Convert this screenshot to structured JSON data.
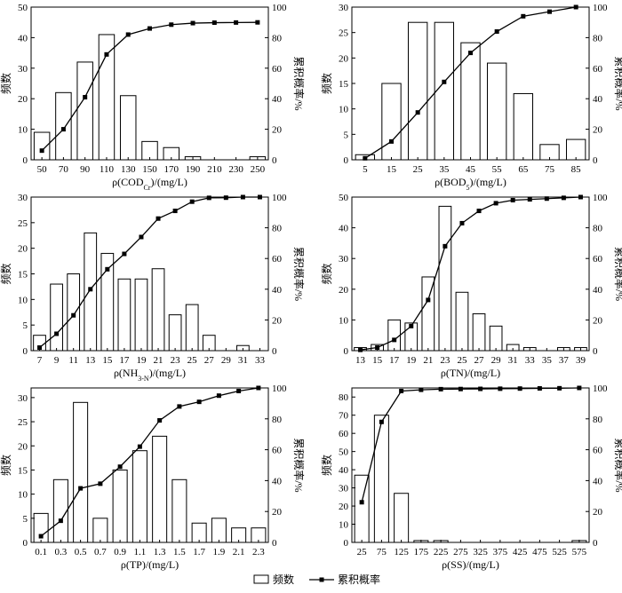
{
  "legend": {
    "bar_label": "频数",
    "line_label": "累积概率"
  },
  "chart_data": [
    {
      "type": "bar",
      "xlabel": "ρ(COD_Cr)/(mg/L)",
      "ylabel_left": "频数",
      "ylabel_right": "累积概率/%",
      "categories": [
        50,
        70,
        90,
        110,
        130,
        150,
        170,
        190,
        210,
        230,
        250
      ],
      "ylim": [
        0,
        50
      ],
      "yticks": [
        0,
        10,
        20,
        30,
        40,
        50
      ],
      "y2lim": [
        0,
        100
      ],
      "y2ticks": [
        0,
        20,
        40,
        60,
        80,
        100
      ],
      "series": [
        {
          "values": [
            9,
            22,
            32,
            41,
            21,
            6,
            4,
            1,
            0,
            0,
            1
          ]
        },
        {
          "values": [
            6,
            20,
            41,
            69,
            82,
            86,
            88.5,
            89.5,
            89.8,
            89.9,
            90
          ]
        }
      ]
    },
    {
      "type": "bar",
      "xlabel": "ρ(BOD_5)/(mg/L)",
      "ylabel_left": "频数",
      "ylabel_right": "累积概率/%",
      "categories": [
        5,
        15,
        25,
        35,
        45,
        55,
        65,
        75,
        85
      ],
      "ylim": [
        0,
        30
      ],
      "yticks": [
        0,
        5,
        10,
        15,
        20,
        25,
        30
      ],
      "y2lim": [
        0,
        100
      ],
      "y2ticks": [
        0,
        20,
        40,
        60,
        80,
        100
      ],
      "series": [
        {
          "values": [
            1,
            15,
            27,
            27,
            23,
            19,
            13,
            3,
            4
          ]
        },
        {
          "values": [
            1,
            12,
            31,
            51,
            70,
            84,
            94,
            97,
            100
          ]
        }
      ]
    },
    {
      "type": "bar",
      "xlabel": "ρ(NH_3-N)/(mg/L)",
      "ylabel_left": "频数",
      "ylabel_right": "累积概率/%",
      "categories": [
        7,
        9,
        11,
        13,
        15,
        17,
        19,
        21,
        23,
        25,
        27,
        29,
        31,
        33
      ],
      "ylim": [
        0,
        30
      ],
      "yticks": [
        0,
        5,
        10,
        15,
        20,
        25,
        30
      ],
      "y2lim": [
        0,
        100
      ],
      "y2ticks": [
        0,
        20,
        40,
        60,
        80,
        100
      ],
      "series": [
        {
          "values": [
            3,
            13,
            15,
            23,
            19,
            14,
            14,
            16,
            7,
            9,
            3,
            0,
            1,
            0
          ]
        },
        {
          "values": [
            2,
            11,
            23,
            40,
            53,
            63,
            74,
            86,
            91,
            97,
            99.5,
            99.6,
            100,
            100
          ]
        }
      ]
    },
    {
      "type": "bar",
      "xlabel": "ρ(TN)/(mg/L)",
      "ylabel_left": "频数",
      "ylabel_right": "累积概率/%",
      "categories": [
        13,
        15,
        17,
        19,
        21,
        23,
        25,
        27,
        29,
        31,
        33,
        35,
        37,
        39
      ],
      "ylim": [
        0,
        50
      ],
      "yticks": [
        0,
        10,
        20,
        30,
        40,
        50
      ],
      "y2lim": [
        0,
        100
      ],
      "y2ticks": [
        0,
        20,
        40,
        60,
        80,
        100
      ],
      "series": [
        {
          "values": [
            1,
            2,
            10,
            9,
            24,
            47,
            19,
            12,
            8,
            2,
            1,
            0,
            1,
            1
          ]
        },
        {
          "values": [
            0.5,
            2,
            7,
            16,
            33,
            68,
            83,
            91,
            96,
            98,
            98.5,
            99,
            99.5,
            100
          ]
        }
      ]
    },
    {
      "type": "bar",
      "xlabel": "ρ(TP)/(mg/L)",
      "ylabel_left": "频数",
      "ylabel_right": "累积概率/%",
      "categories": [
        0.1,
        0.3,
        0.5,
        0.7,
        0.9,
        1.1,
        1.3,
        1.5,
        1.7,
        1.9,
        2.1,
        2.3
      ],
      "ylim": [
        0,
        32
      ],
      "yticks": [
        0,
        5,
        10,
        15,
        20,
        25,
        30
      ],
      "y2lim": [
        0,
        100
      ],
      "y2ticks": [
        0,
        20,
        40,
        60,
        80,
        100
      ],
      "series": [
        {
          "values": [
            6,
            13,
            29,
            5,
            15,
            19,
            22,
            13,
            4,
            5,
            3,
            3
          ]
        },
        {
          "values": [
            4,
            14,
            35,
            38,
            49,
            62,
            79,
            88,
            91,
            95,
            98,
            100
          ]
        }
      ]
    },
    {
      "type": "bar",
      "xlabel": "ρ(SS)/(mg/L)",
      "ylabel_left": "频数",
      "ylabel_right": "累积概率/%",
      "categories": [
        25,
        75,
        125,
        175,
        225,
        275,
        325,
        375,
        425,
        475,
        525,
        575
      ],
      "ylim": [
        0,
        85
      ],
      "yticks": [
        0,
        10,
        20,
        30,
        40,
        50,
        60,
        70,
        80
      ],
      "y2lim": [
        0,
        100
      ],
      "y2ticks": [
        0,
        20,
        40,
        60,
        80,
        100
      ],
      "series": [
        {
          "values": [
            37,
            70,
            27,
            1,
            1,
            0,
            0,
            0,
            0,
            0,
            0,
            1
          ]
        },
        {
          "values": [
            26,
            78,
            98,
            98.8,
            99.2,
            99.3,
            99.4,
            99.5,
            99.6,
            99.7,
            99.8,
            100
          ]
        }
      ]
    }
  ]
}
